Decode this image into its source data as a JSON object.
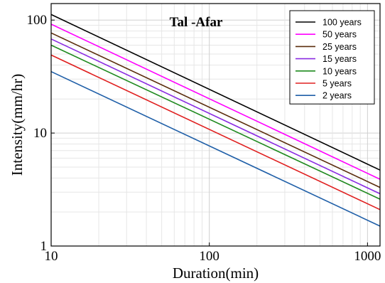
{
  "chart_data": {
    "type": "line",
    "title": "Tal -Afar",
    "xlabel": "Duration(min)",
    "ylabel": "Intensity(mm/hr)",
    "x_scale": "log",
    "y_scale": "log",
    "xlim": [
      10,
      1200
    ],
    "ylim": [
      1,
      140
    ],
    "x_ticks": [
      {
        "value": 10,
        "label": "10"
      },
      {
        "value": 100,
        "label": "100"
      },
      {
        "value": 1000,
        "label": "1000"
      }
    ],
    "y_ticks": [
      {
        "value": 1,
        "label": "1"
      },
      {
        "value": 10,
        "label": "10"
      },
      {
        "value": 100,
        "label": "100"
      }
    ],
    "grid": true,
    "legend_position": "top-right",
    "x": [
      10,
      1200
    ],
    "series": [
      {
        "name": "100 years",
        "color": "#000000",
        "values": [
          112,
          4.7
        ]
      },
      {
        "name": "50 years",
        "color": "#ff00ff",
        "values": [
          92,
          3.9
        ]
      },
      {
        "name": "25 years",
        "color": "#5a2d0c",
        "values": [
          77,
          3.3
        ]
      },
      {
        "name": "15 years",
        "color": "#8a2be2",
        "values": [
          68,
          2.9
        ]
      },
      {
        "name": "10 years",
        "color": "#1f8a1f",
        "values": [
          60,
          2.6
        ]
      },
      {
        "name": "5 years",
        "color": "#e02020",
        "values": [
          49,
          2.1
        ]
      },
      {
        "name": "2 years",
        "color": "#1f5fa8",
        "values": [
          35,
          1.5
        ]
      }
    ]
  }
}
